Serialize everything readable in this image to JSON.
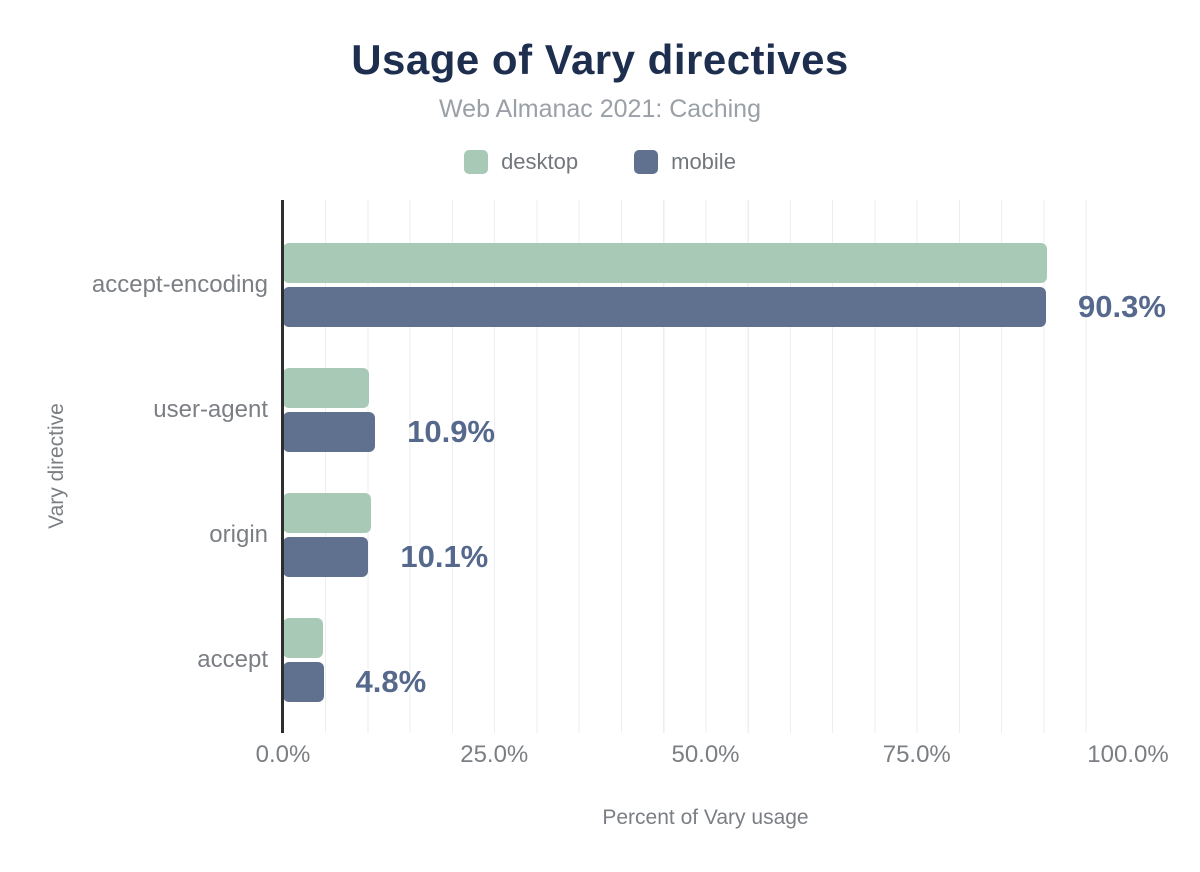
{
  "header": {
    "title": "Usage of Vary directives",
    "subtitle": "Web Almanac 2021: Caching"
  },
  "chart_data": {
    "type": "bar",
    "orientation": "horizontal",
    "title": "Usage of Vary directives",
    "subtitle": "Web Almanac 2021: Caching",
    "categories": [
      "accept-encoding",
      "user-agent",
      "origin",
      "accept"
    ],
    "series": [
      {
        "name": "desktop",
        "color": "#a9c9b7",
        "values": [
          90.4,
          10.2,
          10.4,
          4.7
        ]
      },
      {
        "name": "mobile",
        "color": "#5f718e",
        "values": [
          90.3,
          10.9,
          10.1,
          4.8
        ]
      }
    ],
    "value_labels": [
      "90.3%",
      "10.9%",
      "10.1%",
      "4.8%"
    ],
    "xlabel": "Percent of Vary usage",
    "ylabel": "Vary directive",
    "xlim": [
      0,
      100
    ],
    "x_ticks": [
      0,
      25,
      50,
      75,
      100
    ],
    "x_tick_labels": [
      "0.0%",
      "25.0%",
      "50.0%",
      "75.0%",
      "100.0%"
    ],
    "grid": "vertical, minor lines every 5%",
    "legend_position": "top-center"
  },
  "colors": {
    "title": "#1d2e4e",
    "subtitle": "#9aa0a6",
    "axis_text": "#7b7f84",
    "value_label": "#56698c",
    "gridline": "#eeeeee",
    "axis_line": "#2e2e2e",
    "background": "#ffffff"
  }
}
